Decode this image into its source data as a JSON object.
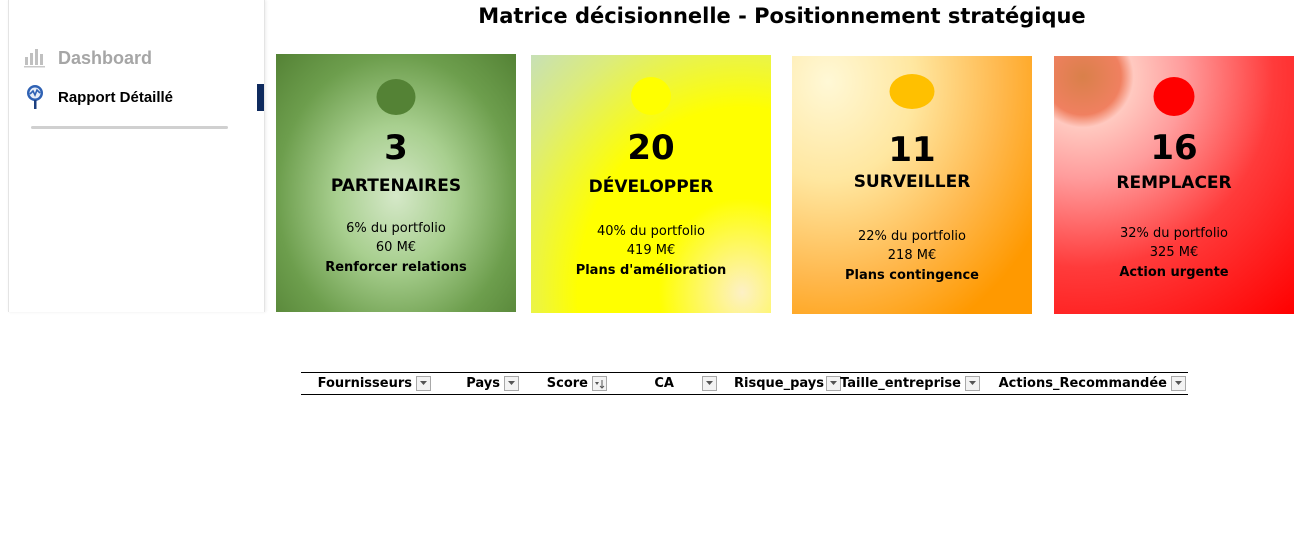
{
  "sidebar": {
    "items": [
      {
        "label": "Dashboard",
        "icon": "bar-chart-icon",
        "active": false
      },
      {
        "label": "Rapport Détaillé",
        "icon": "magnifier-chart-icon",
        "active": true
      }
    ],
    "active_color": "#0e2a5e"
  },
  "title": "Matrice décisionnelle - Positionnement stratégique",
  "cards": [
    {
      "count": "3",
      "label": "PARTENAIRES",
      "pct": "6% du portfolio",
      "amount": "60 M€",
      "action": "Renforcer relations",
      "dot_color": "#548235"
    },
    {
      "count": "20",
      "label": "DÉVELOPPER",
      "pct": "40% du portfolio",
      "amount": "419 M€",
      "action": "Plans d'amélioration",
      "dot_color": "#ffff00"
    },
    {
      "count": "11",
      "label": "SURVEILLER",
      "pct": "22% du portfolio",
      "amount": "218 M€",
      "action": "Plans contingence",
      "dot_color": "#ffc000"
    },
    {
      "count": "16",
      "label": "REMPLACER",
      "pct": "32% du portfolio",
      "amount": "325 M€",
      "action": "Action urgente",
      "dot_color": "#ff0000"
    }
  ],
  "table": {
    "columns": [
      {
        "label": "Fournisseurs",
        "filter": "dropdown"
      },
      {
        "label": "Pays",
        "filter": "dropdown"
      },
      {
        "label": "Score",
        "filter": "sorted"
      },
      {
        "label": "CA",
        "filter": "dropdown"
      },
      {
        "label": "Risque_pays",
        "filter": "dropdown"
      },
      {
        "label": "Taille_entreprise",
        "filter": "dropdown"
      },
      {
        "label": "Actions_Recommandée",
        "filter": "dropdown"
      }
    ]
  }
}
